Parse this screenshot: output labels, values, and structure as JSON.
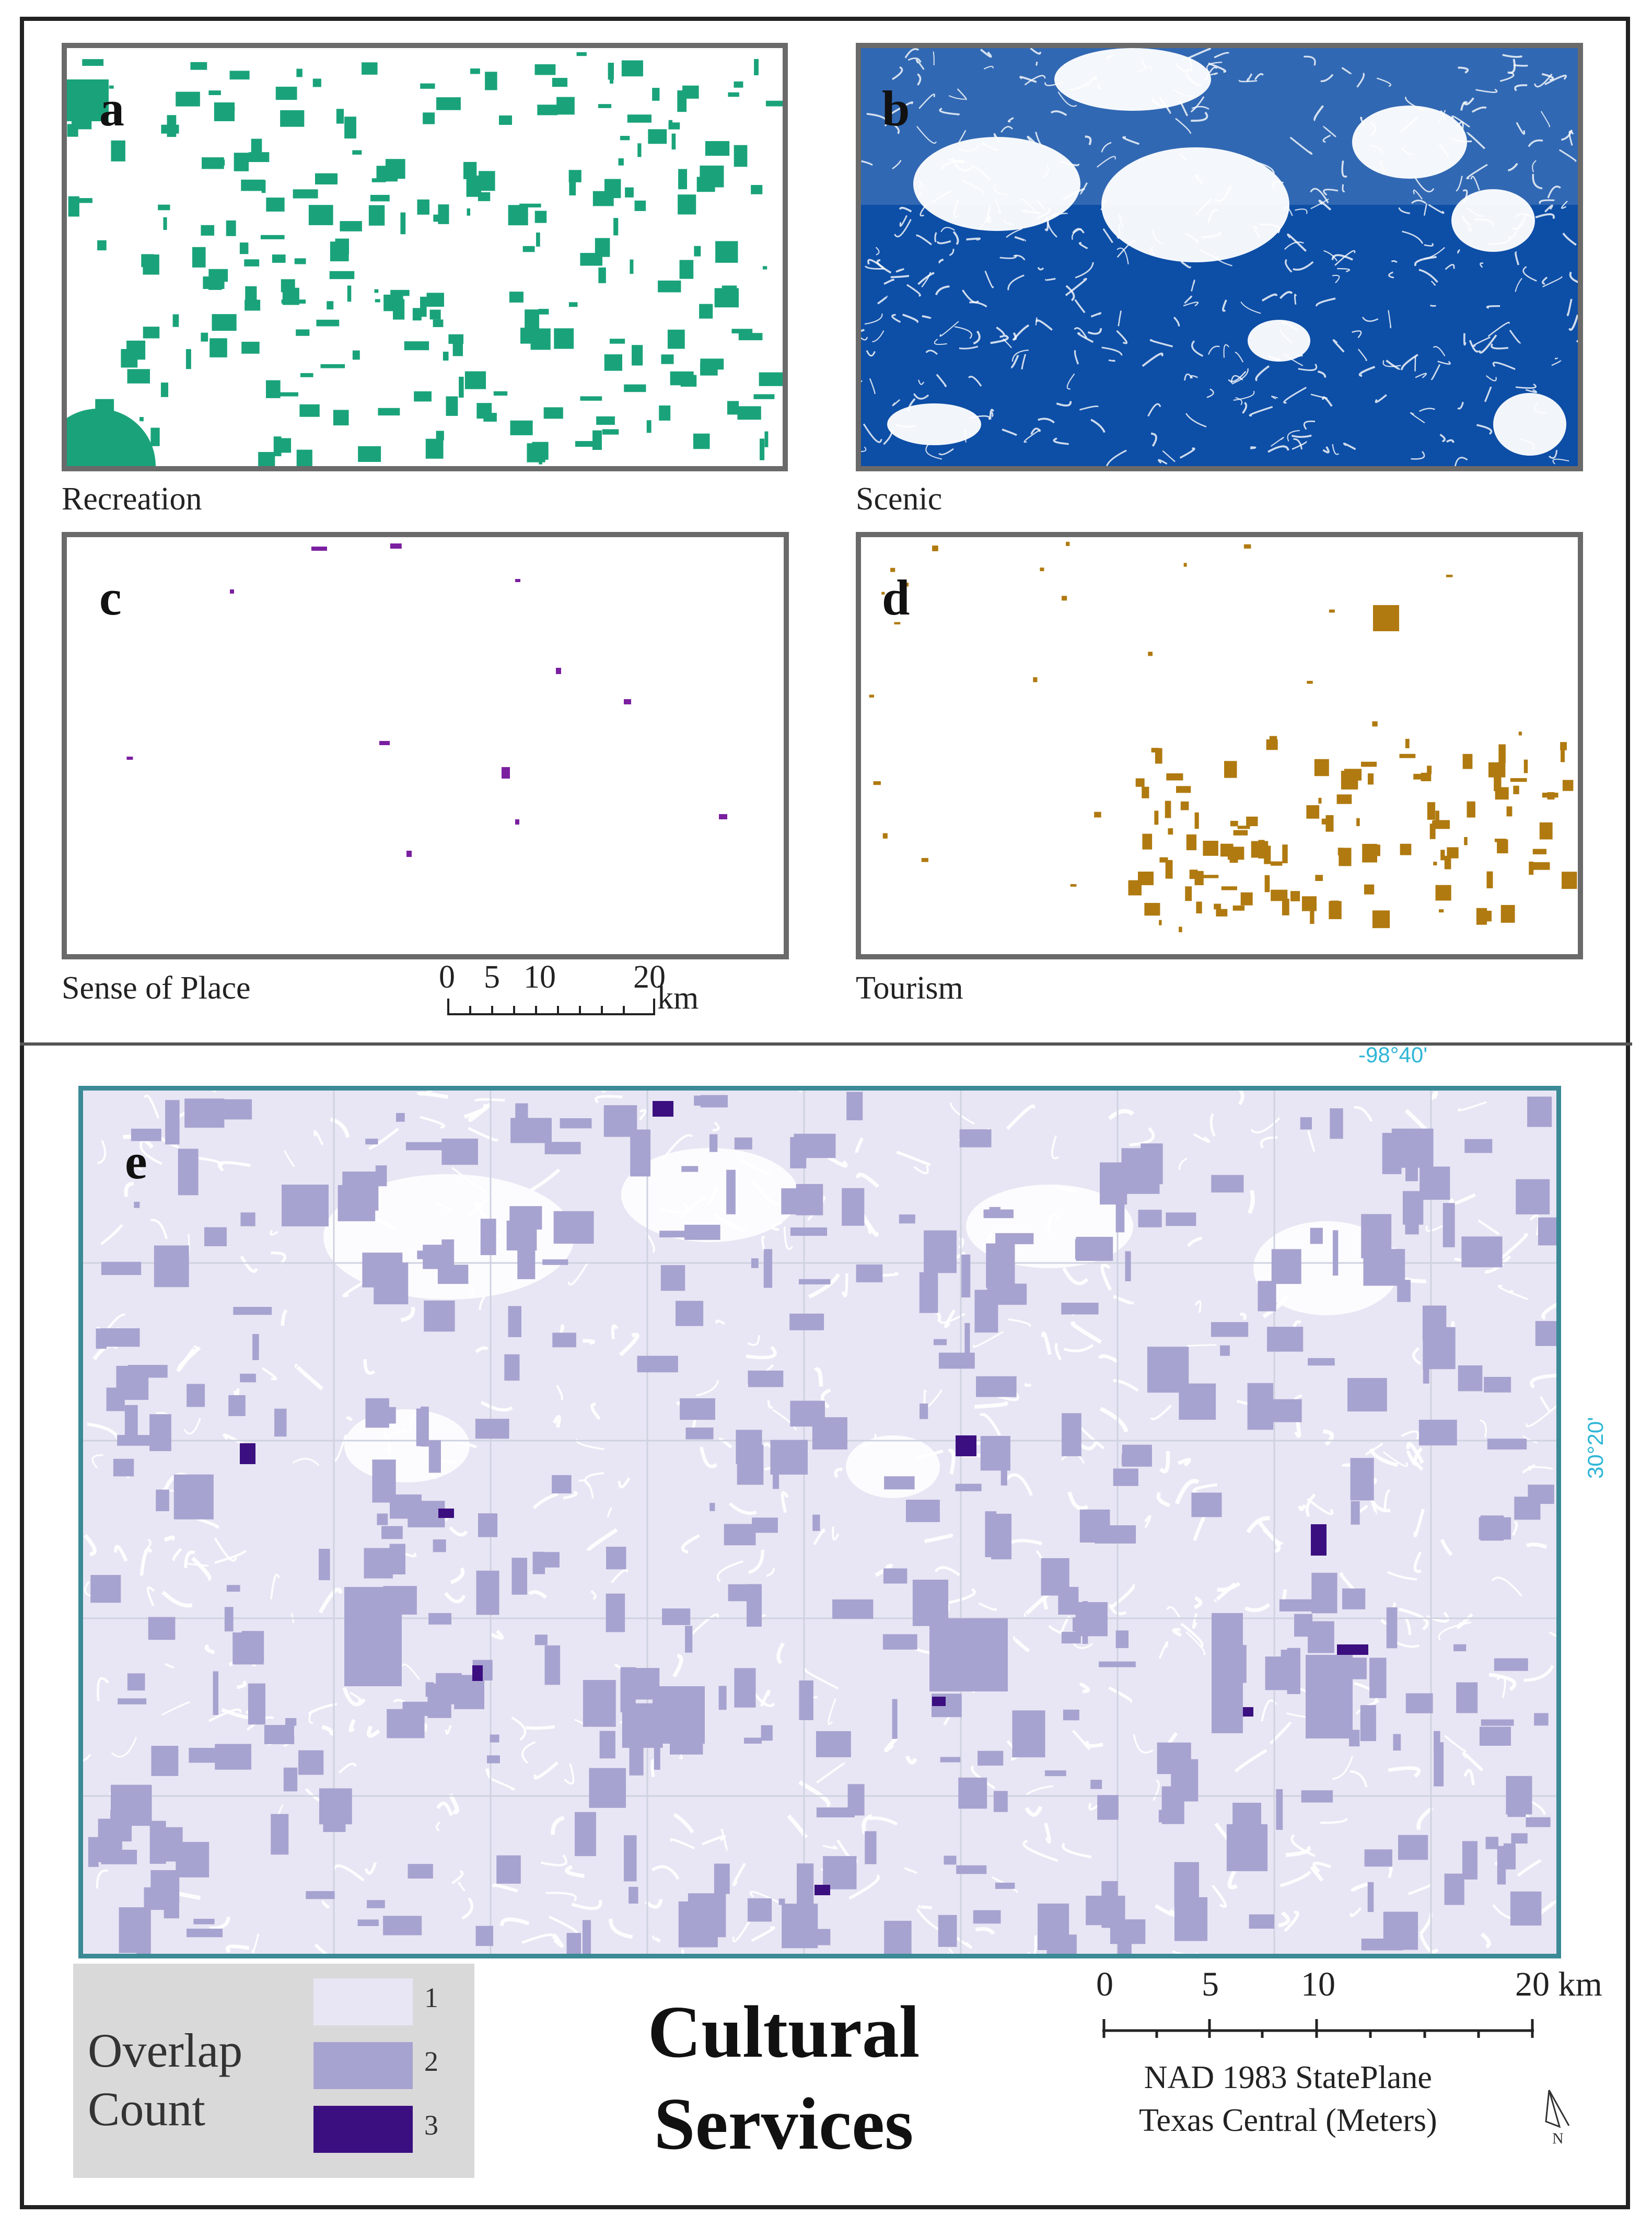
{
  "panels": {
    "a": {
      "letter": "a",
      "caption": "Recreation",
      "color": "#1aa37a"
    },
    "b": {
      "letter": "b",
      "caption": "Scenic",
      "color": "#0d4ea6"
    },
    "c": {
      "letter": "c",
      "caption": "Sense of Place",
      "color": "#7a1fa0"
    },
    "d": {
      "letter": "d",
      "caption": "Tourism",
      "color": "#b07a10"
    },
    "e": {
      "letter": "e"
    }
  },
  "top_scale": {
    "ticks": [
      "0",
      "5",
      "10",
      "20"
    ],
    "unit": "km"
  },
  "grid_labels": {
    "lon": "-98°40'",
    "lat": "30°20'"
  },
  "legend": {
    "title_line1": "Overlap",
    "title_line2": "Count",
    "items": [
      {
        "label": "1",
        "color": "#e8e6f4"
      },
      {
        "label": "2",
        "color": "#a7a3d0"
      },
      {
        "label": "3",
        "color": "#3b0f80"
      }
    ]
  },
  "title": {
    "line1": "Cultural",
    "line2": "Services"
  },
  "bottom_scale": {
    "ticks": [
      "0",
      "5",
      "10",
      "20 km"
    ]
  },
  "projection": {
    "line1": "NAD 1983 StatePlane",
    "line2": "Texas Central (Meters)"
  },
  "north_arrow": {
    "label": "N",
    "icon": "north-arrow-icon"
  }
}
